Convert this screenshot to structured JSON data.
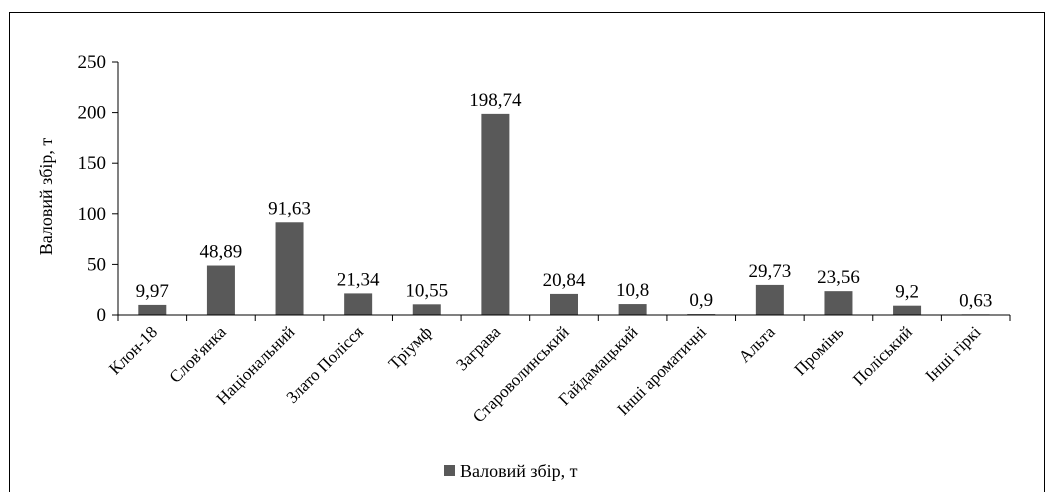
{
  "chart_data": {
    "type": "bar",
    "categories": [
      "Клон-18",
      "Слов'янка",
      "Національний",
      "Злато Полісся",
      "Тріумф",
      "Заграва",
      "Староволинський",
      "Гайдамацький",
      "Інші ароматичні",
      "Альта",
      "Промінь",
      "Поліський",
      "Інші гіркі"
    ],
    "series": [
      {
        "name": "Валовий збір, т",
        "values": [
          9.97,
          48.89,
          91.63,
          21.34,
          10.55,
          198.74,
          20.84,
          10.8,
          0.9,
          29.73,
          23.56,
          9.2,
          0.63
        ],
        "data_labels": [
          "9,97",
          "48,89",
          "91,63",
          "21,34",
          "10,55",
          "198,74",
          "20,84",
          "10,8",
          "0,9",
          "29,73",
          "23,56",
          "9,2",
          "0,63"
        ],
        "color": "#595959"
      }
    ],
    "ylabel": "Валовий збір, т",
    "ylim": [
      0,
      250
    ],
    "yticks": [
      0,
      50,
      100,
      150,
      200,
      250
    ],
    "grid": false,
    "legend": {
      "position": "bottom",
      "label": "Валовий збір, т"
    }
  }
}
